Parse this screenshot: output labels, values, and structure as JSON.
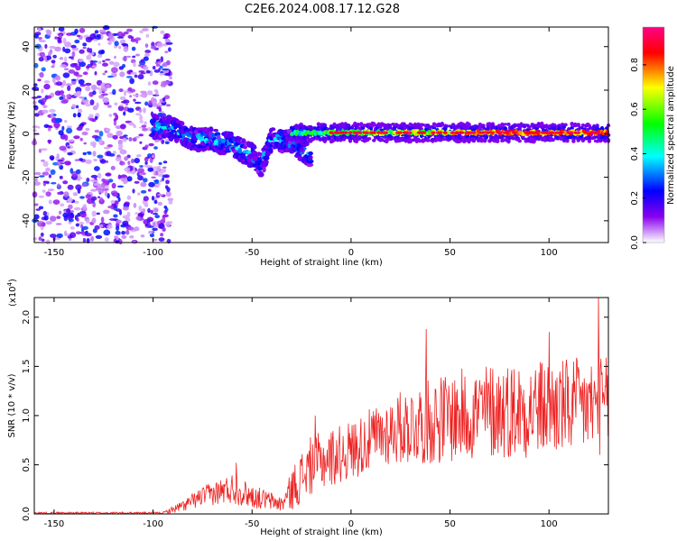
{
  "title": "C2E6.2024.008.17.12.G28",
  "chart_data": [
    {
      "type": "heatmap",
      "xlabel": "Height of straight line (km)",
      "ylabel": "Frequency (Hz)",
      "xlim": [
        -160,
        130
      ],
      "ylim": [
        -50,
        49
      ],
      "xticks": [
        "-150",
        "-100",
        "-50",
        "0",
        "50",
        "100"
      ],
      "yticks": [
        "40",
        "20",
        "0",
        "-20",
        "-40"
      ],
      "colorbar": {
        "label": "Normalized spectral amplitude",
        "ticks": [
          "0.0",
          "0.2",
          "0.4",
          "0.6",
          "0.8"
        ],
        "range": [
          0,
          0.97
        ],
        "colormap": [
          "#ffffff",
          "#7700ee",
          "#0000ff",
          "#00ffff",
          "#00ff00",
          "#ffff00",
          "#ff0000",
          "#ff0088"
        ]
      },
      "structure": {
        "noise_region_km": [
          -160,
          -95
        ],
        "dispersed_arc": [
          {
            "x": -100,
            "f": 3
          },
          {
            "x": -90,
            "f": 2
          },
          {
            "x": -80,
            "f": -2
          },
          {
            "x": -70,
            "f": -3
          },
          {
            "x": -60,
            "f": -5
          },
          {
            "x": -50,
            "f": -10
          },
          {
            "x": -45,
            "f": -14
          },
          {
            "x": -40,
            "f": -2
          },
          {
            "x": -30,
            "f": -4
          },
          {
            "x": -20,
            "f": -10
          }
        ],
        "horizontal_band": {
          "x_from": -30,
          "x_to": 130,
          "f_center": 0.5,
          "peak_amplitude": 0.95
        }
      }
    },
    {
      "type": "line",
      "xlabel": "Height of straight line (km)",
      "ylabel": "SNR (10 * v/v)",
      "yscale_label": "(x10",
      "yscale_exp": "4",
      "xlim": [
        -160,
        130
      ],
      "ylim": [
        0,
        2.2
      ],
      "xticks": [
        "-150",
        "-100",
        "-50",
        "0",
        "50",
        "100"
      ],
      "yticks": [
        "0.0",
        "0.5",
        "1.0",
        "1.5",
        "2.0"
      ],
      "color": "#ee2222",
      "envelope": [
        {
          "x": -160,
          "base": 0.01,
          "amp": 0.01
        },
        {
          "x": -95,
          "base": 0.01,
          "amp": 0.01
        },
        {
          "x": -85,
          "base": 0.08,
          "amp": 0.06
        },
        {
          "x": -75,
          "base": 0.18,
          "amp": 0.1
        },
        {
          "x": -60,
          "base": 0.26,
          "amp": 0.16
        },
        {
          "x": -50,
          "base": 0.18,
          "amp": 0.12
        },
        {
          "x": -35,
          "base": 0.1,
          "amp": 0.08
        },
        {
          "x": -28,
          "base": 0.3,
          "amp": 0.25
        },
        {
          "x": -20,
          "base": 0.5,
          "amp": 0.3
        },
        {
          "x": 0,
          "base": 0.65,
          "amp": 0.3
        },
        {
          "x": 20,
          "base": 0.85,
          "amp": 0.35
        },
        {
          "x": 40,
          "base": 0.95,
          "amp": 0.45
        },
        {
          "x": 70,
          "base": 1.05,
          "amp": 0.5
        },
        {
          "x": 100,
          "base": 1.08,
          "amp": 0.5
        },
        {
          "x": 130,
          "base": 1.1,
          "amp": 0.5
        }
      ],
      "peaks": [
        {
          "x": -58,
          "y": 0.52
        },
        {
          "x": -18,
          "y": 1.0
        },
        {
          "x": 38,
          "y": 1.88
        },
        {
          "x": 100,
          "y": 1.85
        },
        {
          "x": 125,
          "y": 2.2
        }
      ]
    }
  ]
}
